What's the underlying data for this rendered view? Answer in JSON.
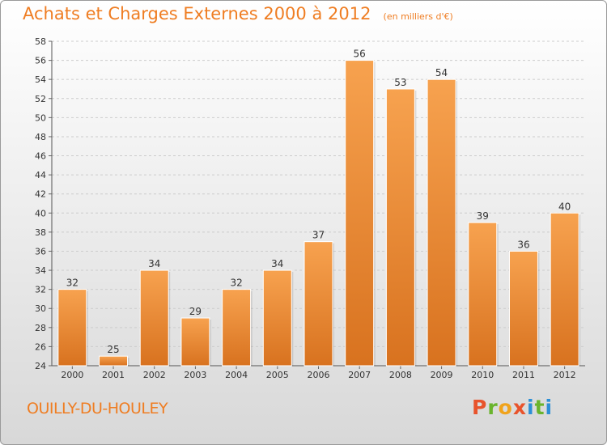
{
  "chart_data": {
    "type": "bar",
    "title": "Achats et Charges Externes 2000 à 2012",
    "subtitle": "(en milliers d'€)",
    "xlabel": "",
    "ylabel": "",
    "categories": [
      "2000",
      "2001",
      "2002",
      "2003",
      "2004",
      "2005",
      "2006",
      "2007",
      "2008",
      "2009",
      "2010",
      "2011",
      "2012"
    ],
    "values": [
      32,
      25,
      34,
      29,
      32,
      34,
      37,
      56,
      53,
      54,
      39,
      36,
      40
    ],
    "ylim": [
      24,
      58
    ],
    "yticks": [
      24,
      26,
      28,
      30,
      32,
      34,
      36,
      38,
      40,
      42,
      44,
      46,
      48,
      50,
      52,
      54,
      56,
      58
    ],
    "grid": true,
    "legend": "none",
    "bar_color_top": "#f7a24f",
    "bar_color_bottom": "#d8721f"
  },
  "footer": {
    "commune": "OUILLY-DU-HOULEY",
    "logo_letters": [
      "P",
      "r",
      "o",
      "x",
      "i",
      "t",
      "i"
    ],
    "logo_colors": [
      "#e8532b",
      "#6ab42d",
      "#f0a31c",
      "#e8532b",
      "#2c8fd6",
      "#6ab42d",
      "#2c8fd6"
    ]
  }
}
